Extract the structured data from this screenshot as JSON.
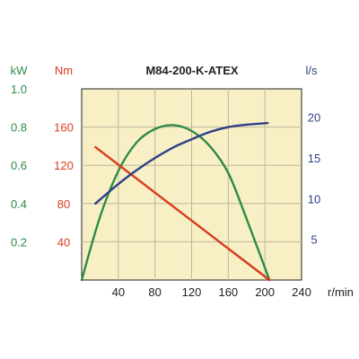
{
  "chart_data": {
    "type": "line",
    "title": "M84-200-K-ATEX",
    "x": {
      "unit": "r/min",
      "range": [
        0,
        240
      ],
      "ticks": [
        "40",
        "80",
        "120",
        "160",
        "200",
        "240"
      ],
      "tick_values": [
        40,
        80,
        120,
        160,
        200,
        240
      ]
    },
    "axes": {
      "kw": {
        "unit": "kW",
        "range": [
          0,
          1.0
        ],
        "ticks": [
          "0.2",
          "0.4",
          "0.6",
          "0.8",
          "1.0"
        ],
        "tick_values": [
          0.2,
          0.4,
          0.6,
          0.8,
          1.0
        ],
        "color": "#2e8b45"
      },
      "nm": {
        "unit": "Nm",
        "range": [
          0,
          200
        ],
        "ticks": [
          "40",
          "80",
          "120",
          "160"
        ],
        "tick_values": [
          40,
          80,
          120,
          160
        ],
        "color": "#d83a1e"
      },
      "ls": {
        "unit": "l/s",
        "range": [
          0,
          23.5
        ],
        "ticks": [
          "5",
          "10",
          "15",
          "20"
        ],
        "tick_values": [
          5,
          10,
          15,
          20
        ],
        "color": "#2e3f86"
      }
    },
    "series": [
      {
        "axis": "kw",
        "color": "#2e8b45",
        "curve": "smooth",
        "points": [
          [
            0,
            0
          ],
          [
            20,
            0.33
          ],
          [
            40,
            0.57
          ],
          [
            60,
            0.72
          ],
          [
            80,
            0.79
          ],
          [
            100,
            0.81
          ],
          [
            120,
            0.78
          ],
          [
            140,
            0.7
          ],
          [
            160,
            0.56
          ],
          [
            180,
            0.32
          ],
          [
            205,
            0
          ]
        ]
      },
      {
        "axis": "nm",
        "color": "#d83a1e",
        "curve": "linear",
        "points": [
          [
            15,
            139
          ],
          [
            205,
            0
          ]
        ]
      },
      {
        "axis": "ls",
        "color": "#2e3f86",
        "curve": "smooth",
        "points": [
          [
            15,
            9.4
          ],
          [
            40,
            11.8
          ],
          [
            60,
            13.5
          ],
          [
            80,
            15.0
          ],
          [
            100,
            16.3
          ],
          [
            120,
            17.3
          ],
          [
            140,
            18.2
          ],
          [
            160,
            18.8
          ],
          [
            180,
            19.1
          ],
          [
            203,
            19.3
          ]
        ]
      }
    ],
    "grid": true,
    "plot_background": "#f8f0c4"
  }
}
